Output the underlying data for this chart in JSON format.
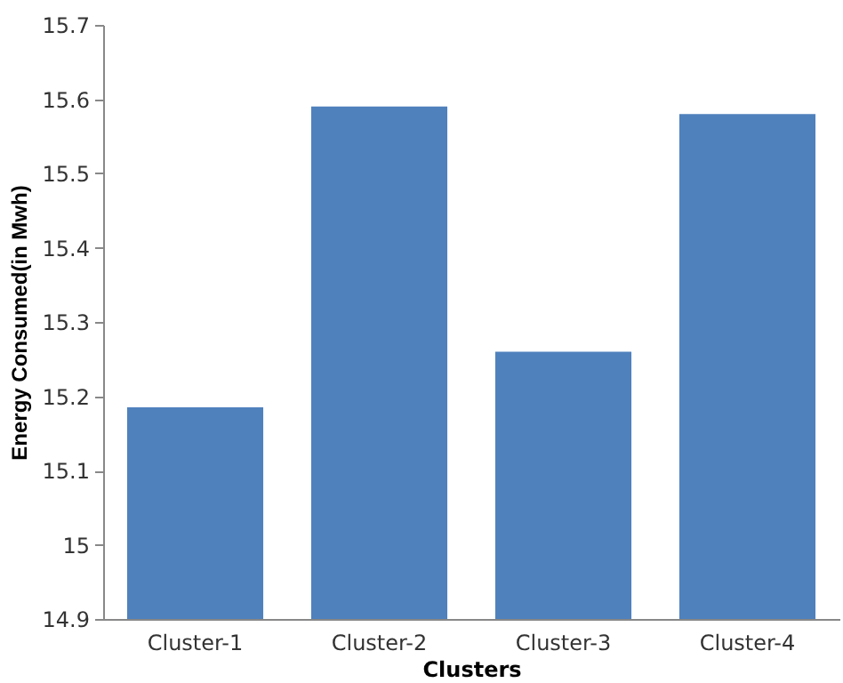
{
  "chart_data": {
    "type": "bar",
    "xlabel": "Clusters",
    "ylabel": "Energy Consumed(in Mwh)",
    "categories": [
      "Cluster-1",
      "Cluster-2",
      "Cluster-3",
      "Cluster-4"
    ],
    "values": [
      15.185,
      15.59,
      15.26,
      15.58
    ],
    "color": "#4f81bd",
    "ylim": [
      14.9,
      15.7
    ],
    "yticks": [
      14.9,
      15,
      15.1,
      15.2,
      15.3,
      15.4,
      15.5,
      15.6,
      15.7
    ],
    "grid": false
  }
}
